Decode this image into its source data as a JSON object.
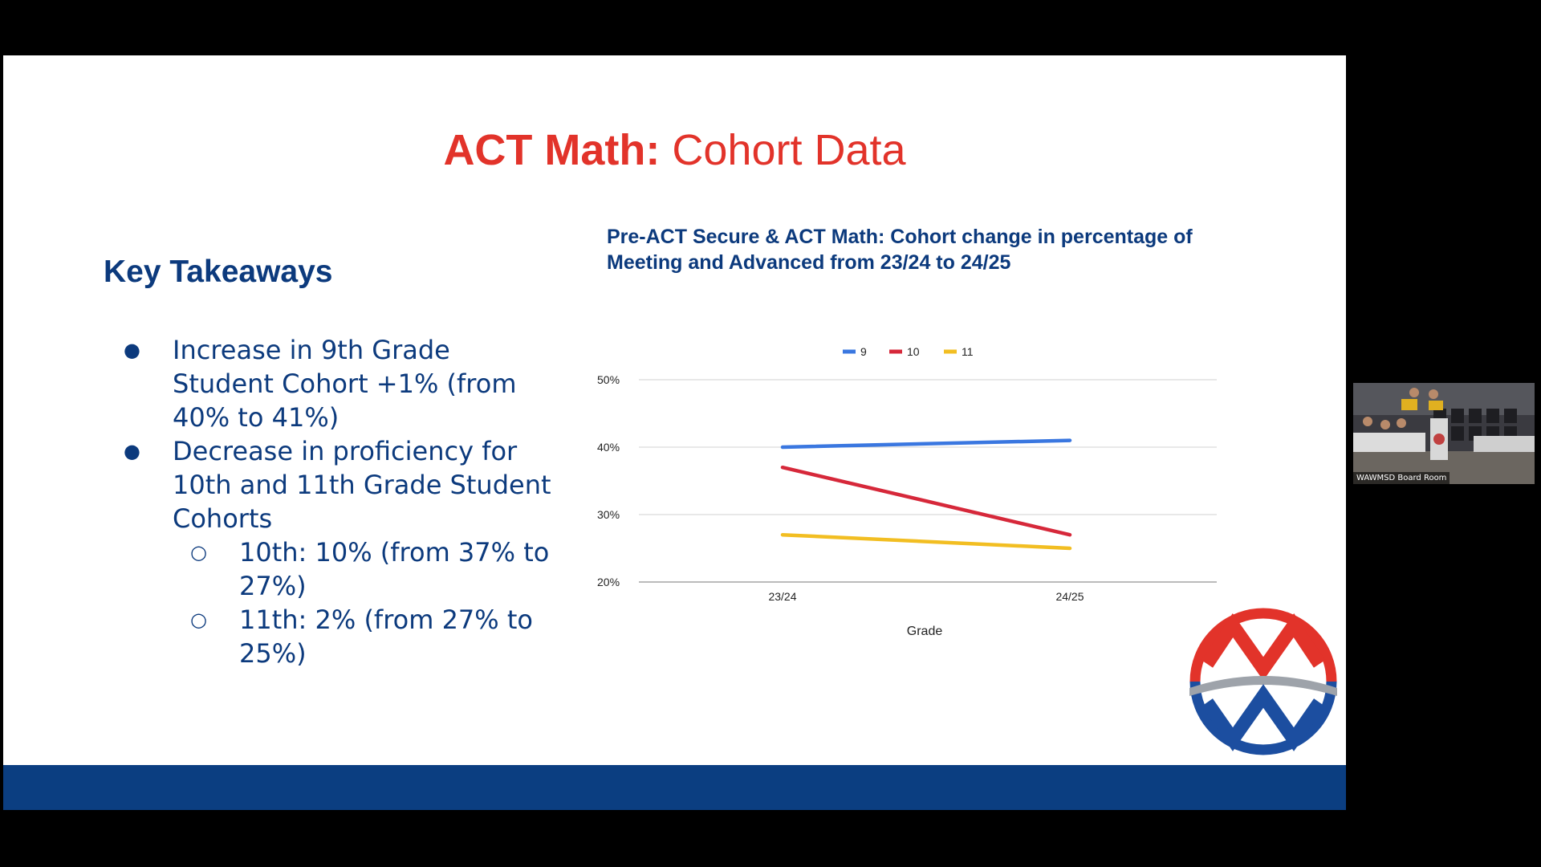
{
  "slide": {
    "title_bold": "ACT Math:",
    "title_rest": " Cohort Data",
    "takeaways_heading": "Key Takeaways",
    "bullets": [
      {
        "text": "Increase in 9th Grade Student Cohort +1% (from 40% to 41%)"
      },
      {
        "text": "Decrease in proficiency for 10th and 11th Grade Student Cohorts",
        "sub": [
          {
            "text": "10th: 10% (from 37% to 27%)"
          },
          {
            "text": "11th: 2% (from 27% to 25%)"
          }
        ]
      }
    ]
  },
  "chart_data": {
    "type": "line",
    "title": "Pre-ACT Secure & ACT Math: Cohort change in percentage of Meeting and Advanced from 23/24 to 24/25",
    "xlabel": "Grade",
    "ylabel": "",
    "x": [
      "23/24",
      "24/25"
    ],
    "ylim": [
      20,
      50
    ],
    "yticks": [
      20,
      30,
      40,
      50
    ],
    "ytick_labels": [
      "20%",
      "30%",
      "40%",
      "50%"
    ],
    "grid": true,
    "legend_position": "top",
    "series": [
      {
        "name": "9",
        "values": [
          40,
          41
        ],
        "color": "#3a77e0"
      },
      {
        "name": "10",
        "values": [
          37,
          27
        ],
        "color": "#d6283a"
      },
      {
        "name": "11",
        "values": [
          27,
          25
        ],
        "color": "#f2be22"
      }
    ]
  },
  "colors": {
    "title_red": "#e2332a",
    "text_blue": "#0c3a7d",
    "footer_blue": "#0b3e81",
    "logo_red": "#e2332a",
    "logo_blue": "#1c4ea0",
    "logo_gray": "#9ea3aa"
  },
  "video": {
    "label": "WAWMSD Board Room"
  }
}
